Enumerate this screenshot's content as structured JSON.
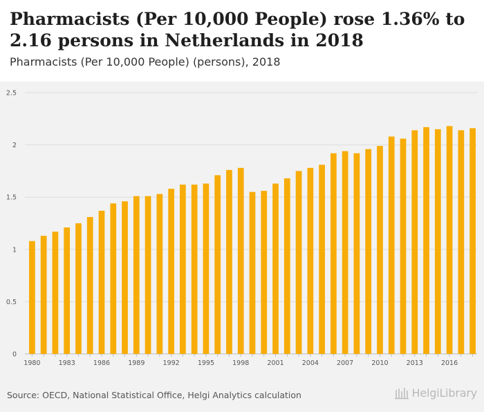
{
  "header": {
    "title": "Pharmacists (Per 10,000 People) rose 1.36% to 2.16 persons in Netherlands in 2018",
    "subtitle": "Pharmacists (Per 10,000 People) (persons), 2018"
  },
  "footer": {
    "source": "Source: OECD, National Statistical Office, Helgi Analytics calculation",
    "logo_text": "HelgiLibrary"
  },
  "colors": {
    "bar": "#f7ac08",
    "background": "#f2f2f2",
    "grid": "#dcdcdc",
    "axis_text": "#555555"
  },
  "chart_data": {
    "type": "bar",
    "title": "Pharmacists (Per 10,000 People) rose 1.36% to 2.16 persons in Netherlands in 2018",
    "subtitle": "Pharmacists (Per 10,000 People) (persons), 2018",
    "categories": [
      "1980",
      "1981",
      "1982",
      "1983",
      "1984",
      "1985",
      "1986",
      "1987",
      "1988",
      "1989",
      "1990",
      "1991",
      "1992",
      "1993",
      "1994",
      "1995",
      "1996",
      "1997",
      "1998",
      "1999",
      "2000",
      "2001",
      "2002",
      "2003",
      "2004",
      "2005",
      "2006",
      "2007",
      "2008",
      "2009",
      "2010",
      "2011",
      "2012",
      "2013",
      "2014",
      "2015",
      "2016",
      "2017",
      "2018"
    ],
    "values": [
      1.08,
      1.13,
      1.17,
      1.21,
      1.25,
      1.31,
      1.37,
      1.44,
      1.46,
      1.51,
      1.51,
      1.53,
      1.58,
      1.62,
      1.62,
      1.63,
      1.71,
      1.76,
      1.78,
      1.55,
      1.56,
      1.63,
      1.68,
      1.75,
      1.78,
      1.81,
      1.92,
      1.94,
      1.92,
      1.96,
      1.99,
      2.08,
      2.06,
      2.14,
      2.17,
      2.15,
      2.18,
      2.14,
      2.16
    ],
    "x_tick_labels": [
      "1980",
      "1983",
      "1986",
      "1989",
      "1992",
      "1995",
      "1998",
      "2001",
      "2004",
      "2007",
      "2010",
      "2013",
      "2016"
    ],
    "y_ticks": [
      0,
      0.5,
      1,
      1.5,
      2,
      2.5
    ],
    "y_tick_labels": [
      "0",
      "0.5",
      "1",
      "1.5",
      "2",
      "2.5"
    ],
    "ylim": [
      0,
      2.5
    ],
    "xlabel": "",
    "ylabel": "",
    "grid": true,
    "legend": "none"
  }
}
